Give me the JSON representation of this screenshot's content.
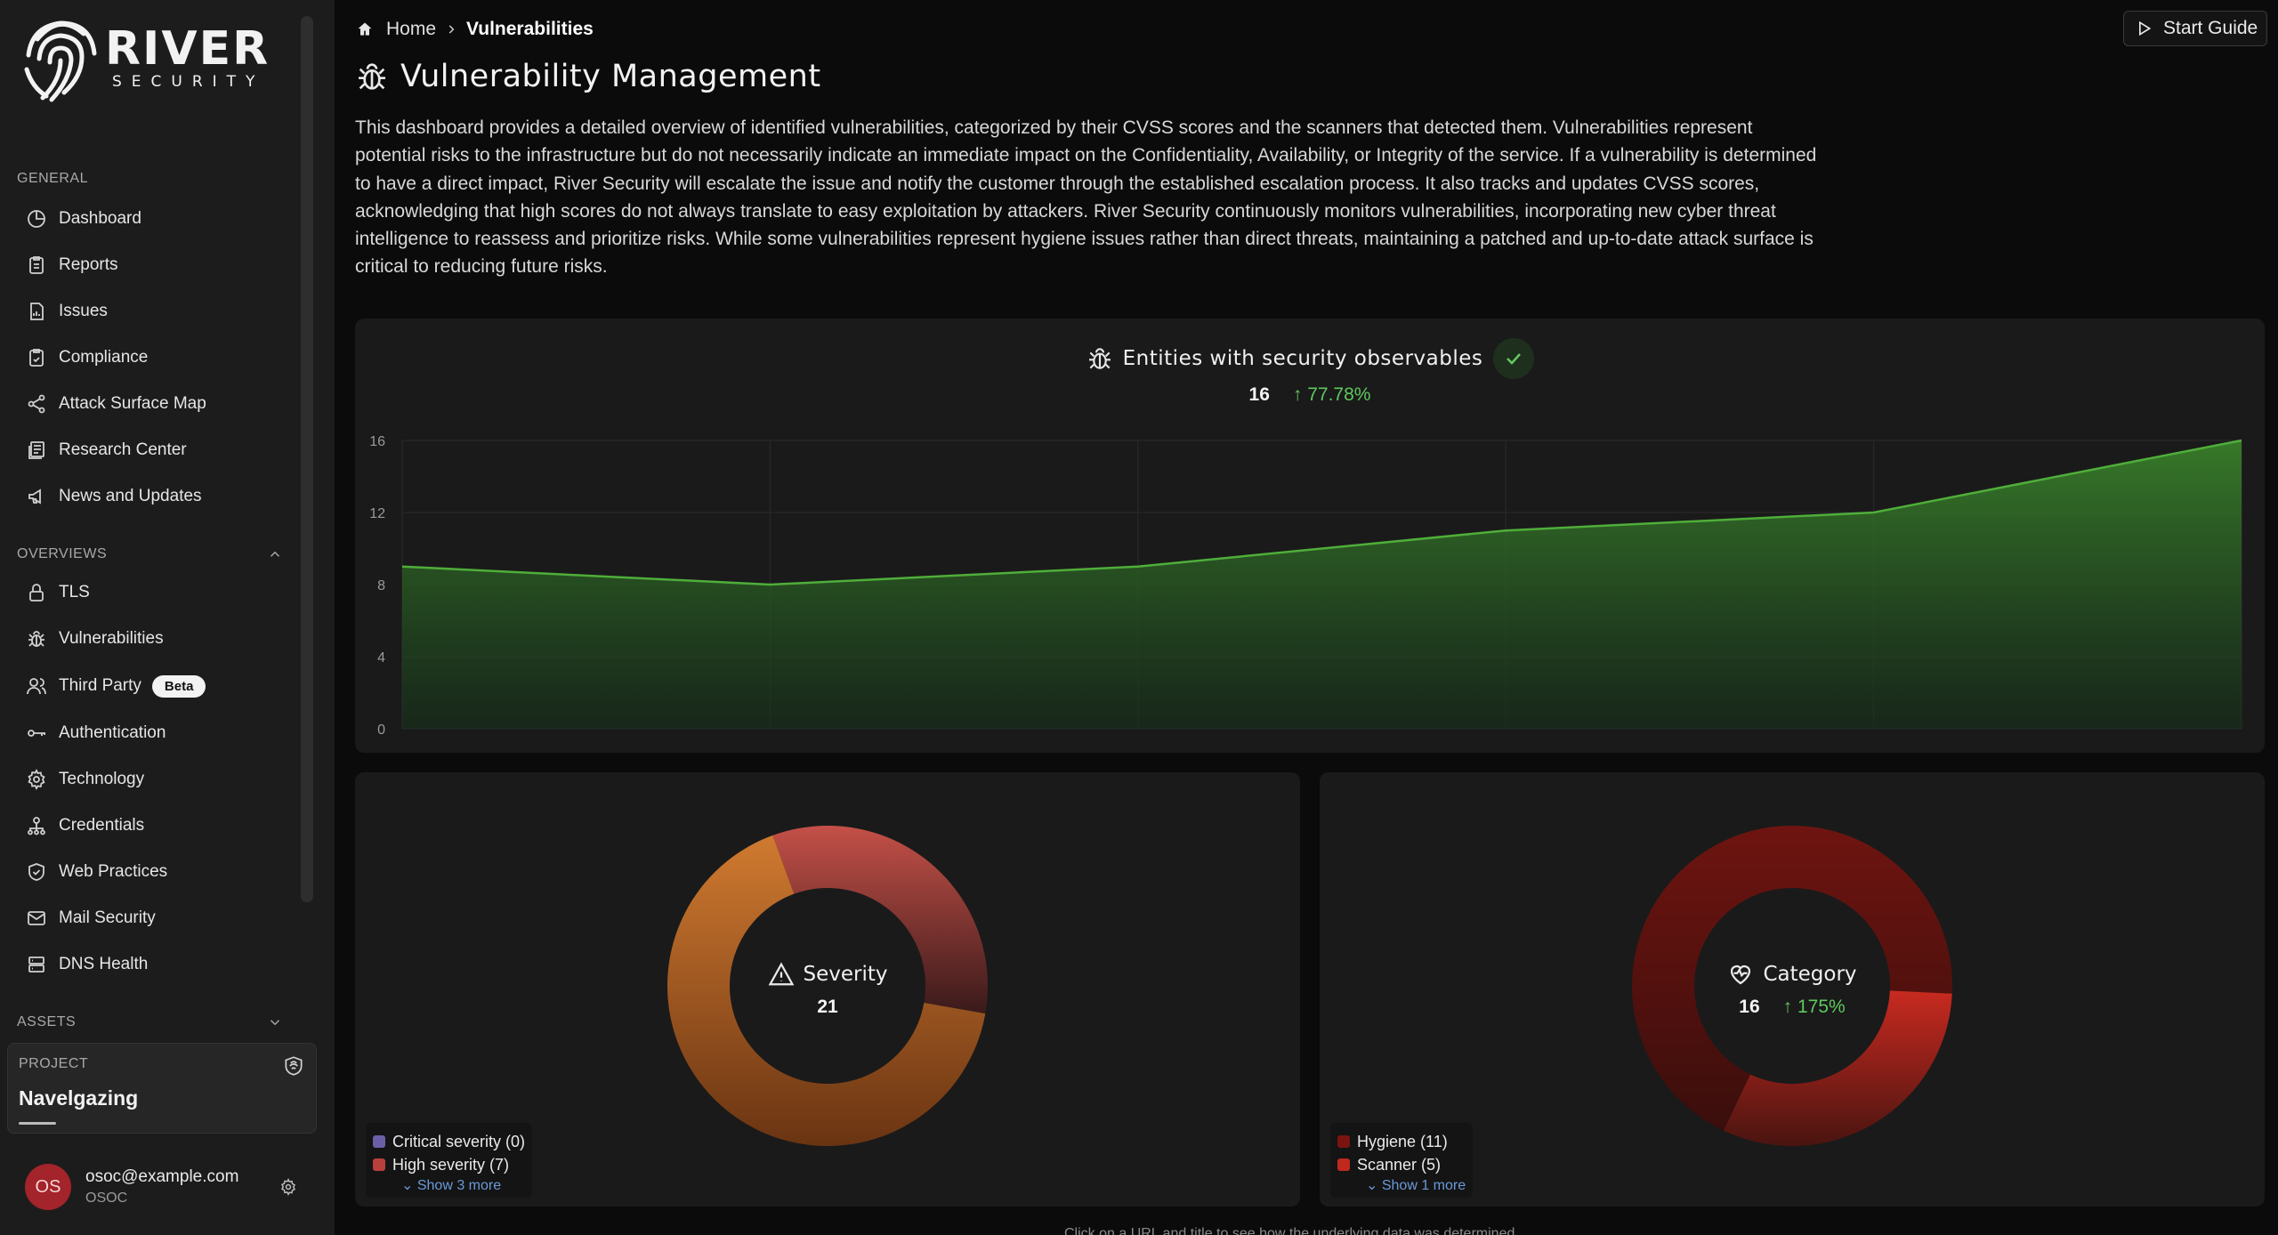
{
  "brand": {
    "name": "RIVER",
    "sub": "SECURITY"
  },
  "sidebar": {
    "general_title": "GENERAL",
    "general_items": [
      {
        "label": "Dashboard",
        "icon": "dashboard-icon"
      },
      {
        "label": "Reports",
        "icon": "reports-icon"
      },
      {
        "label": "Issues",
        "icon": "issues-icon"
      },
      {
        "label": "Compliance",
        "icon": "compliance-icon"
      },
      {
        "label": "Attack Surface Map",
        "icon": "share-icon"
      },
      {
        "label": "Research Center",
        "icon": "research-icon"
      },
      {
        "label": "News and Updates",
        "icon": "megaphone-icon"
      }
    ],
    "overviews_title": "OVERVIEWS",
    "overview_items": [
      {
        "label": "TLS",
        "icon": "lock-icon"
      },
      {
        "label": "Vulnerabilities",
        "icon": "bug-icon"
      },
      {
        "label": "Third Party",
        "icon": "users-icon",
        "badge": "Beta"
      },
      {
        "label": "Authentication",
        "icon": "key-icon"
      },
      {
        "label": "Technology",
        "icon": "gear-icon"
      },
      {
        "label": "Credentials",
        "icon": "org-icon"
      },
      {
        "label": "Web Practices",
        "icon": "shield-check-icon"
      },
      {
        "label": "Mail Security",
        "icon": "mail-icon"
      },
      {
        "label": "DNS Health",
        "icon": "server-icon"
      }
    ],
    "assets_title": "ASSETS",
    "project": {
      "label": "PROJECT",
      "name": "Navelgazing"
    },
    "user": {
      "initials": "OS",
      "email": "osoc@example.com",
      "org": "OSOC"
    }
  },
  "header": {
    "breadcrumb_home": "Home",
    "breadcrumb_current": "Vulnerabilities",
    "start_guide": "Start Guide",
    "title": "Vulnerability Management",
    "description": "This dashboard provides a detailed overview of identified vulnerabilities, categorized by their CVSS scores and the scanners that detected them. Vulnerabilities represent potential risks to the infrastructure but do not necessarily indicate an immediate impact on the Confidentiality, Availability, or Integrity of the service. If a vulnerability is determined to have a direct impact, River Security will escalate the issue and notify the customer through the established escalation process. It also tracks and updates CVSS scores, acknowledging that high scores do not always translate to easy exploitation by attackers. River Security continuously monitors vulnerabilities, incorporating new cyber threat intelligence to reassess and prioritize risks. While some vulnerabilities represent hygiene issues rather than direct threats, maintaining a patched and up-to-date attack surface is critical to reducing future risks."
  },
  "entities_card": {
    "title": "Entities with security observables",
    "count": "16",
    "delta": "77.78%"
  },
  "severity_card": {
    "title": "Severity",
    "count": "21",
    "legend": [
      {
        "label": "Critical severity (0)",
        "color": "#6b5fa8"
      },
      {
        "label": "High severity (7)",
        "color": "#b8403c"
      }
    ],
    "more": "Show 3 more"
  },
  "category_card": {
    "title": "Category",
    "count": "16",
    "delta": "175%",
    "legend": [
      {
        "label": "Hygiene (11)",
        "color": "#7a1410"
      },
      {
        "label": "Scanner (5)",
        "color": "#c0281e"
      }
    ],
    "more": "Show 1 more"
  },
  "footer_note": "Click on a URL and title to see how the underlying data was determined.",
  "chart_data": [
    {
      "type": "area",
      "title": "Entities with security observables",
      "x": [
        0,
        1,
        2,
        3,
        4,
        5
      ],
      "series": [
        {
          "values": [
            9,
            8,
            9,
            11,
            12,
            16
          ]
        }
      ],
      "yticks": [
        0,
        4,
        8,
        12,
        16
      ],
      "ylim": [
        0,
        16
      ],
      "grid": true,
      "color": "#4fae3a"
    },
    {
      "type": "pie",
      "title": "Severity",
      "slices": [
        {
          "label": "Critical severity",
          "value": 0,
          "color": "#6b5fa8"
        },
        {
          "label": "High severity",
          "value": 7,
          "color": "#b8403c"
        },
        {
          "label": "",
          "value": 14,
          "color": "#c26a28"
        }
      ]
    },
    {
      "type": "pie",
      "title": "Category",
      "slices": [
        {
          "label": "Hygiene",
          "value": 11,
          "color": "#7a1410"
        },
        {
          "label": "Scanner",
          "value": 5,
          "color": "#c0281e"
        }
      ]
    }
  ]
}
